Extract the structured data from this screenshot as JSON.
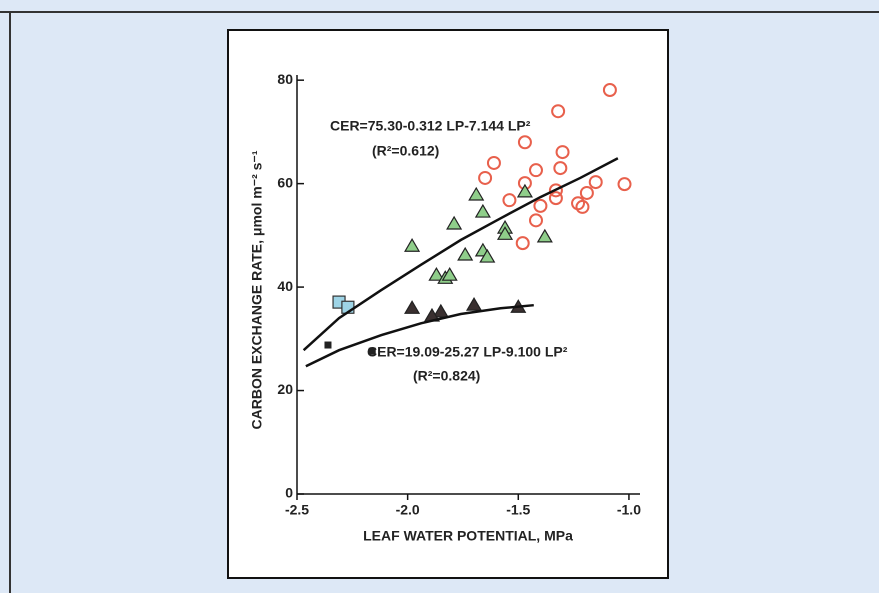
{
  "chart_data": {
    "type": "scatter",
    "xlabel": "LEAF WATER POTENTIAL, MPa",
    "ylabel": "CARBON EXCHANGE RATE, μmol m⁻² s⁻¹",
    "annotations": [
      "CER=75.30-0.312 LP-7.144 LP²",
      "(R²=0.612)",
      "CER=19.09-25.27 LP-9.100 LP²",
      "(R²=0.824)"
    ],
    "xlim": [
      -2.5,
      -0.95
    ],
    "ylim": [
      0,
      81
    ],
    "xticks": [
      -2.5,
      {
        "value": -2,
        "label": "-2.0"
      },
      -1.5,
      {
        "value": -1,
        "label": "-1.0"
      }
    ],
    "yticks": [
      0,
      20,
      40,
      60,
      80
    ],
    "series": [
      {
        "marker": "circle",
        "color": "#e8604c",
        "x": [
          -1.086,
          -1.32,
          -1.47,
          -1.3,
          -1.61,
          -1.42,
          -1.31,
          -1.65,
          -1.47,
          -1.33,
          -1.15,
          -1.02,
          -1.19,
          -1.33,
          -1.54,
          -1.4,
          -1.23,
          -1.21,
          -1.42,
          -1.48
        ],
        "values": [
          78.1,
          74.0,
          68.0,
          66.1,
          64.0,
          62.6,
          63.0,
          61.1,
          60.1,
          58.7,
          60.3,
          59.9,
          58.2,
          57.2,
          56.8,
          55.7,
          56.2,
          55.5,
          52.9,
          48.5
        ]
      },
      {
        "marker": "triangle",
        "color": "#8fce8a",
        "x": [
          -1.69,
          -1.47,
          -1.66,
          -1.79,
          -1.56,
          -1.56,
          -1.38,
          -1.98,
          -1.66,
          -1.74,
          -1.64,
          -1.87,
          -1.83,
          -1.81
        ],
        "values": [
          57.8,
          58.4,
          54.5,
          52.2,
          51.4,
          50.2,
          49.7,
          47.9,
          47.0,
          46.2,
          45.8,
          42.3,
          41.7,
          42.3
        ]
      },
      {
        "marker": "square",
        "color": "#9ed4e6",
        "x": [
          -2.31,
          -2.27
        ],
        "values": [
          37.1,
          36.1
        ]
      },
      {
        "marker": "triangle",
        "color": "#3a3030",
        "x": [
          -1.98,
          -1.7,
          -1.5,
          -1.85,
          -1.89
        ],
        "values": [
          35.9,
          36.5,
          36.1,
          35.2,
          34.4
        ]
      },
      {
        "marker": "small-square",
        "color": "#222222",
        "x": [
          -2.36,
          -2.16
        ],
        "values": [
          28.8,
          27.6
        ]
      },
      {
        "marker": "line",
        "color": "#111111",
        "x": [
          -2.47,
          -2.31,
          -2.12,
          -1.94,
          -1.76,
          -1.58,
          -1.4,
          -1.22,
          -1.05
        ],
        "values": [
          27.8,
          34.0,
          39.4,
          44.3,
          49.1,
          53.3,
          57.4,
          61.1,
          64.9
        ]
      },
      {
        "marker": "line",
        "color": "#111111",
        "x": [
          -2.46,
          -2.31,
          -2.12,
          -1.94,
          -1.76,
          -1.58,
          -1.43
        ],
        "values": [
          24.7,
          27.8,
          30.7,
          33.0,
          34.8,
          35.9,
          36.5
        ]
      }
    ]
  }
}
